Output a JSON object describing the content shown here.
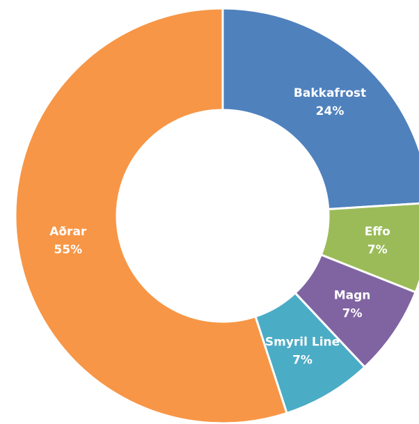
{
  "chart_data": {
    "type": "donut",
    "categories": [
      "Bakkafrost",
      "Effo",
      "Magn",
      "Smyril Line",
      "Aðrar"
    ],
    "values": [
      24,
      7,
      7,
      7,
      55
    ],
    "value_labels": [
      "24%",
      "7%",
      "7%",
      "7%",
      "55%"
    ],
    "colors": [
      "#4f81bd",
      "#9bbb59",
      "#8064a2",
      "#4bacc6",
      "#f79646"
    ]
  }
}
